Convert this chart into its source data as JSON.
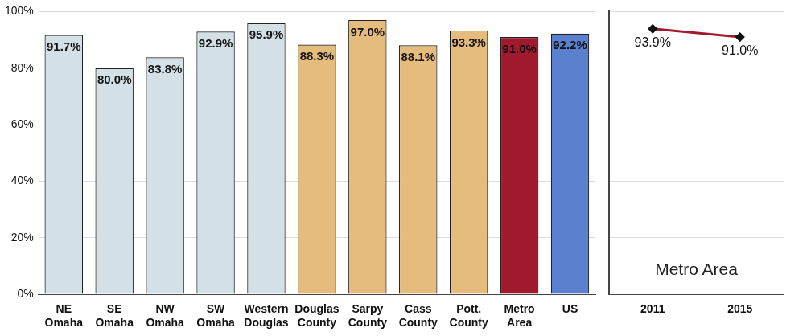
{
  "chart_data": [
    {
      "type": "bar",
      "categories": [
        "NE Omaha",
        "SE Omaha",
        "NW Omaha",
        "SW Omaha",
        "Western Douglas",
        "Douglas County",
        "Sarpy County",
        "Cass County",
        "Pott. County",
        "Metro Area",
        "US"
      ],
      "values": [
        91.7,
        80.0,
        83.8,
        92.9,
        95.9,
        88.3,
        97.0,
        88.1,
        93.3,
        91.0,
        92.2
      ],
      "colors": [
        "#d3e0e5",
        "#d3e0e5",
        "#d3e0e5",
        "#d3e0e5",
        "#d3e0e5",
        "#e6bc7d",
        "#e6bc7d",
        "#e6bc7d",
        "#e6bc7d",
        "#a0192e",
        "#5b80d0"
      ],
      "value_labels": [
        "91.7%",
        "80.0%",
        "83.8%",
        "92.9%",
        "95.9%",
        "88.3%",
        "97.0%",
        "88.1%",
        "93.3%",
        "91.0%",
        "92.2%"
      ],
      "ylim": [
        0,
        100
      ],
      "yticks": [
        {
          "value": 0,
          "label": "0%"
        },
        {
          "value": 20,
          "label": "20%"
        },
        {
          "value": 40,
          "label": "40%"
        },
        {
          "value": 60,
          "label": "60%"
        },
        {
          "value": 80,
          "label": "80%"
        },
        {
          "value": 100,
          "label": "100%"
        }
      ],
      "grid": "y",
      "legend": false
    },
    {
      "type": "line",
      "categories": [
        "2011",
        "2015"
      ],
      "values": [
        93.9,
        91.0
      ],
      "color": "#a0192e",
      "marker": "diamond",
      "value_labels": [
        "93.9%",
        "91.0%"
      ],
      "ylim": [
        0,
        100
      ],
      "yticks": [
        {
          "value": 0,
          "label": null
        },
        {
          "value": 20,
          "label": null
        },
        {
          "value": 40,
          "label": null
        },
        {
          "value": 60,
          "label": null
        },
        {
          "value": 80,
          "label": null
        },
        {
          "value": 100,
          "label": null
        }
      ],
      "tick_labels": "x",
      "grid": "y",
      "legend": false,
      "annotations": [
        "Metro Area"
      ]
    }
  ]
}
